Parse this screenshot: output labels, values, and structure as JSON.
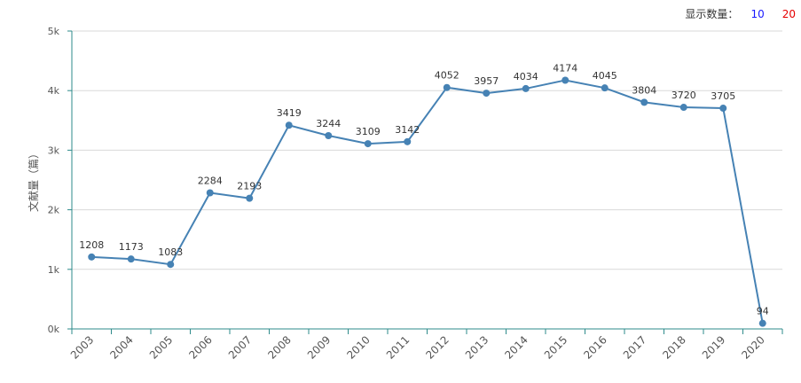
{
  "toolbar": {
    "label": "显示数量：",
    "options": [
      {
        "label": "10",
        "color": "#1a1aff"
      },
      {
        "label": "20",
        "color": "#e60000"
      }
    ]
  },
  "chart_data": {
    "type": "line",
    "title": "",
    "xlabel": "",
    "ylabel": "文献量（篇）",
    "ylim": [
      0,
      5000
    ],
    "yticks": [
      {
        "value": 0,
        "label": "0k"
      },
      {
        "value": 1000,
        "label": "1k"
      },
      {
        "value": 2000,
        "label": "2k"
      },
      {
        "value": 3000,
        "label": "3k"
      },
      {
        "value": 4000,
        "label": "4k"
      },
      {
        "value": 5000,
        "label": "5k"
      }
    ],
    "grid": true,
    "categories": [
      "2003",
      "2004",
      "2005",
      "2006",
      "2007",
      "2008",
      "2009",
      "2010",
      "2011",
      "2012",
      "2013",
      "2014",
      "2015",
      "2016",
      "2017",
      "2018",
      "2019",
      "2020"
    ],
    "series": [
      {
        "name": "文献量",
        "color": "#4682b4",
        "values": [
          1208,
          1173,
          1083,
          2284,
          2193,
          3419,
          3244,
          3109,
          3142,
          4052,
          3957,
          4034,
          4174,
          4045,
          3804,
          3720,
          3705,
          94
        ]
      }
    ]
  }
}
